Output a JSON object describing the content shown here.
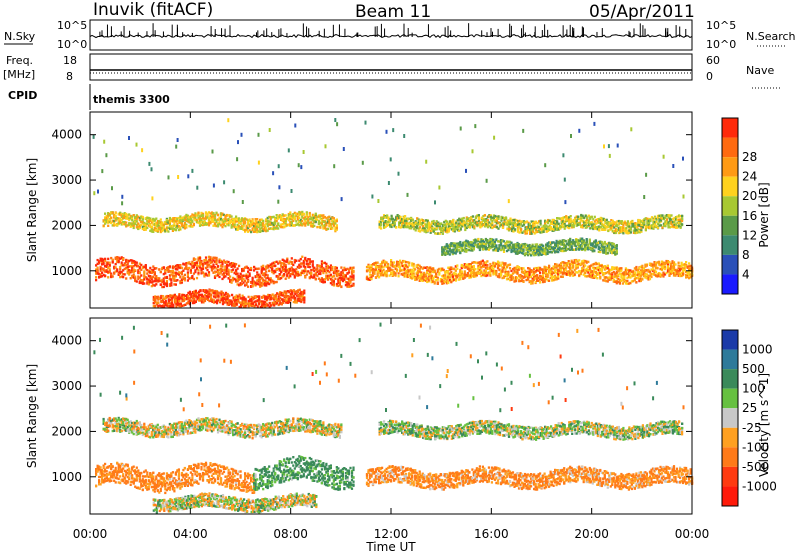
{
  "header": {
    "station": "Inuvik (fitACF)",
    "beam": "Beam 11",
    "date": "05/Apr/2011"
  },
  "strip_labels": {
    "nsky": "N.Sky",
    "freq_top": "Freq.",
    "freq_unit": "[MHz]",
    "cpid": "CPID",
    "nsearch": "N.Search",
    "nave": "Nave",
    "cpid_text": "themis 3300"
  },
  "strip_ticks": {
    "noise_top": "10^5",
    "noise_bottom": "10^0",
    "freq_top": "18",
    "freq_bottom": "8",
    "nave_top": "60",
    "nave_bottom": "0"
  },
  "panels": {
    "ylabel": "Slant Range [km]",
    "xlabel": "Time UT",
    "x_ticks": [
      "00:00",
      "04:00",
      "08:00",
      "12:00",
      "16:00",
      "20:00",
      "00:00"
    ],
    "y_ticks": [
      "1000",
      "2000",
      "3000",
      "4000"
    ]
  },
  "colorbars": {
    "power": {
      "title": "Power [dB]",
      "labels": [
        "4",
        "8",
        "12",
        "16",
        "20",
        "24",
        "28"
      ],
      "colors": [
        "#1a1aff",
        "#2a50b8",
        "#3c8a70",
        "#5a9a48",
        "#a8c832",
        "#ffd21e",
        "#ff9a14",
        "#ff6a10",
        "#ff2a0a"
      ]
    },
    "velocity": {
      "title": "Velocity [m s^-1]",
      "labels": [
        "1000",
        "500",
        "100",
        "25",
        "-25",
        "-100",
        "-500",
        "-1000"
      ],
      "colors": [
        "#1a3aa8",
        "#2e7a9a",
        "#3a8a5a",
        "#66c040",
        "#c8c8c8",
        "#ffa020",
        "#ff7a18",
        "#ff3a10",
        "#ff1a0a"
      ]
    }
  },
  "chart_data": [
    {
      "type": "heatmap",
      "name": "Power",
      "x": {
        "label": "Time UT",
        "range_hours": [
          0,
          24
        ]
      },
      "y": {
        "label": "Slant Range [km]",
        "range": [
          180,
          4500
        ]
      },
      "color_scale": {
        "label": "Power [dB]",
        "range": [
          0,
          30
        ]
      },
      "bands": [
        {
          "t_start": 0.2,
          "t_end": 10.5,
          "range_center": 1000,
          "range_width": 450,
          "value_db": 26
        },
        {
          "t_start": 11.0,
          "t_end": 24.0,
          "range_center": 1000,
          "range_width": 350,
          "value_db": 22
        },
        {
          "t_start": 0.5,
          "t_end": 9.8,
          "range_center": 2100,
          "range_width": 300,
          "value_db": 18
        },
        {
          "t_start": 11.5,
          "t_end": 23.6,
          "range_center": 2050,
          "range_width": 280,
          "value_db": 16
        },
        {
          "t_start": 2.5,
          "t_end": 8.5,
          "range_center": 400,
          "range_width": 280,
          "value_db": 27
        },
        {
          "t_start": 14.0,
          "t_end": 21.0,
          "range_center": 1550,
          "range_width": 250,
          "value_db": 12
        }
      ]
    },
    {
      "type": "heatmap",
      "name": "Velocity",
      "x": {
        "label": "Time UT",
        "range_hours": [
          0,
          24
        ]
      },
      "y": {
        "label": "Slant Range [km]",
        "range": [
          180,
          4500
        ]
      },
      "color_scale": {
        "label": "Velocity [m s^-1]",
        "range": [
          -1000,
          1000
        ]
      },
      "bands": [
        {
          "t_start": 0.2,
          "t_end": 6.5,
          "range_center": 1000,
          "range_width": 450,
          "value": -150
        },
        {
          "t_start": 6.5,
          "t_end": 10.5,
          "range_center": 1100,
          "range_width": 500,
          "value": 150
        },
        {
          "t_start": 11.0,
          "t_end": 24.0,
          "range_center": 1000,
          "range_width": 350,
          "value": -120
        },
        {
          "t_start": 0.5,
          "t_end": 10.0,
          "range_center": 2100,
          "range_width": 300,
          "value": 0
        },
        {
          "t_start": 11.5,
          "t_end": 23.6,
          "range_center": 2050,
          "range_width": 280,
          "value": 40
        },
        {
          "t_start": 2.5,
          "t_end": 9.0,
          "range_center": 450,
          "range_width": 280,
          "value": 10
        }
      ]
    }
  ]
}
